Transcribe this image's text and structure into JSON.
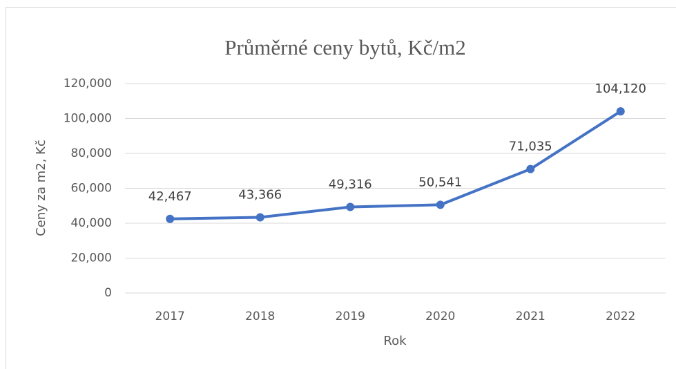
{
  "chart_data": {
    "type": "line",
    "title": "Průměrné ceny bytů, Kč/m2",
    "x_label": "Rok",
    "y_label": "Ceny za m2, Kč",
    "categories": [
      "2017",
      "2018",
      "2019",
      "2020",
      "2021",
      "2022"
    ],
    "series": [
      {
        "name": "Ceny za m2, Kč",
        "color": "#4472c4",
        "values": [
          42467,
          43366,
          49316,
          50541,
          71035,
          104120
        ],
        "value_labels": [
          "42,467",
          "43,366",
          "49,316",
          "50,541",
          "71,035",
          "104,120"
        ]
      }
    ],
    "ylim": [
      0,
      120000
    ],
    "yticks": [
      0,
      {
        "value": 20000,
        "label": "20,000"
      },
      {
        "value": 40000,
        "label": "40,000"
      },
      {
        "value": 60000,
        "label": "60,000"
      },
      {
        "value": 80000,
        "label": "80,000"
      },
      {
        "value": 100000,
        "label": "100,000"
      },
      {
        "value": 120000,
        "label": "120,000"
      }
    ],
    "grid": true
  }
}
